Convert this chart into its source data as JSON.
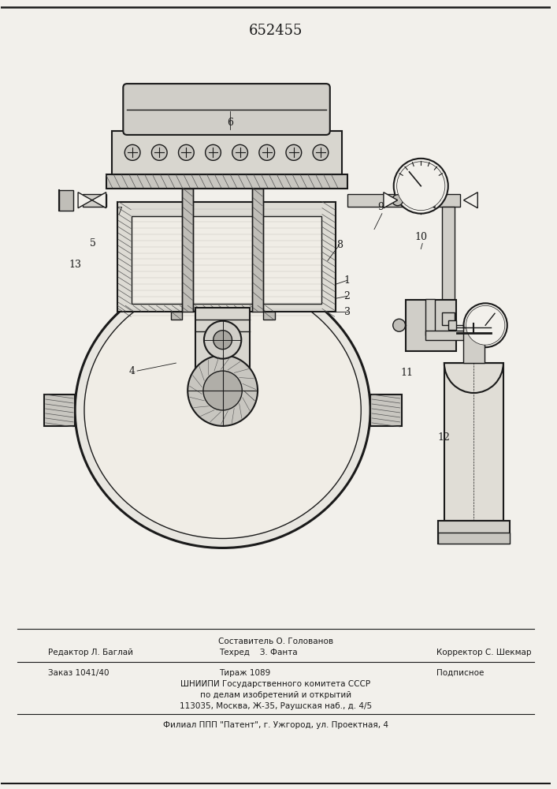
{
  "patent_number": "652455",
  "bg_color": "#f2f0eb",
  "lc": "#1a1a1a",
  "footer": [
    "Составитель О. Голованов",
    "Редактор Л. Баглай",
    "Техред    З. Фанта",
    "Корректор С. Шекмар",
    "Заказ 1041/40",
    "Тираж 1089",
    "Подписное",
    "ШНИИПИ Государственного комитета СССР",
    "по делам изобретений и открытий",
    "113035, Москва, Ж-35, Раушская наб., д. 4/5",
    "Филиал ППП \"Патент\", г. Ужгород, ул. Проектная, 4"
  ]
}
